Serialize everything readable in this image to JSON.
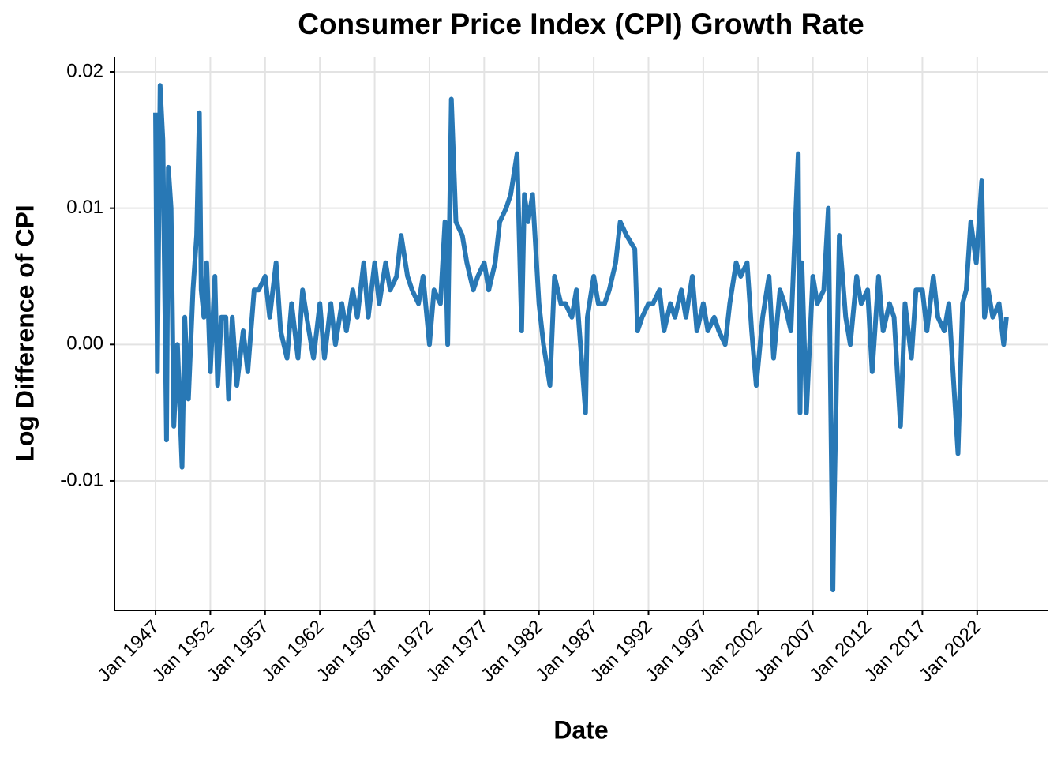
{
  "chart_data": {
    "type": "line",
    "title": "Consumer Price Index (CPI) Growth Rate",
    "x_label": "Date",
    "y_label": "Log Difference of CPI",
    "x": [
      "1947-01",
      "1947-03",
      "1947-06",
      "1947-09",
      "1948-01",
      "1948-03",
      "1948-06",
      "1948-09",
      "1949-01",
      "1949-06",
      "1949-09",
      "1950-01",
      "1950-06",
      "1950-10",
      "1951-01",
      "1951-03",
      "1951-06",
      "1951-09",
      "1952-01",
      "1952-06",
      "1952-09",
      "1953-01",
      "1953-06",
      "1953-09",
      "1954-01",
      "1954-06",
      "1955-01",
      "1955-06",
      "1956-01",
      "1956-06",
      "1957-01",
      "1957-06",
      "1958-01",
      "1958-06",
      "1959-01",
      "1959-06",
      "1960-01",
      "1960-06",
      "1961-01",
      "1961-06",
      "1962-01",
      "1962-06",
      "1963-01",
      "1963-06",
      "1964-01",
      "1964-06",
      "1965-01",
      "1965-06",
      "1966-01",
      "1966-06",
      "1967-01",
      "1967-06",
      "1968-01",
      "1968-06",
      "1969-01",
      "1969-06",
      "1970-01",
      "1970-06",
      "1971-01",
      "1971-06",
      "1972-01",
      "1972-06",
      "1973-01",
      "1973-06",
      "1973-09",
      "1974-01",
      "1974-06",
      "1975-01",
      "1975-06",
      "1976-01",
      "1976-06",
      "1977-01",
      "1977-06",
      "1978-01",
      "1978-06",
      "1979-01",
      "1979-06",
      "1980-01",
      "1980-06",
      "1980-09",
      "1981-01",
      "1981-06",
      "1982-01",
      "1982-06",
      "1983-01",
      "1983-06",
      "1984-01",
      "1984-06",
      "1985-01",
      "1985-06",
      "1986-04",
      "1986-06",
      "1987-01",
      "1987-06",
      "1988-01",
      "1988-06",
      "1989-01",
      "1989-06",
      "1990-01",
      "1990-10",
      "1991-01",
      "1991-06",
      "1992-01",
      "1992-06",
      "1993-01",
      "1993-06",
      "1994-01",
      "1994-06",
      "1995-01",
      "1995-06",
      "1996-01",
      "1996-06",
      "1997-01",
      "1997-06",
      "1998-01",
      "1998-06",
      "1999-01",
      "1999-06",
      "2000-01",
      "2000-06",
      "2001-01",
      "2001-06",
      "2001-11",
      "2002-06",
      "2003-01",
      "2003-06",
      "2004-01",
      "2004-06",
      "2005-01",
      "2005-09",
      "2005-11",
      "2006-01",
      "2006-06",
      "2007-01",
      "2007-06",
      "2008-01",
      "2008-06",
      "2008-11",
      "2008-12",
      "2009-06",
      "2010-01",
      "2010-06",
      "2011-01",
      "2011-06",
      "2012-01",
      "2012-06",
      "2013-01",
      "2013-06",
      "2014-01",
      "2014-06",
      "2015-01",
      "2015-06",
      "2016-01",
      "2016-06",
      "2017-01",
      "2017-06",
      "2018-01",
      "2018-06",
      "2019-01",
      "2019-06",
      "2020-04",
      "2020-09",
      "2021-01",
      "2021-06",
      "2021-12",
      "2022-06",
      "2022-09",
      "2023-01",
      "2023-06",
      "2024-01",
      "2024-06",
      "2024-09"
    ],
    "series": [
      {
        "color": "#2878b5",
        "values": [
          0.017,
          -0.002,
          0.019,
          0.015,
          -0.007,
          0.013,
          0.01,
          -0.006,
          0.0,
          -0.009,
          0.002,
          -0.004,
          0.004,
          0.008,
          0.017,
          0.004,
          0.002,
          0.006,
          -0.002,
          0.005,
          -0.003,
          0.002,
          0.002,
          -0.004,
          0.002,
          -0.003,
          0.001,
          -0.002,
          0.004,
          0.004,
          0.005,
          0.002,
          0.006,
          0.001,
          -0.001,
          0.003,
          -0.001,
          0.004,
          0.001,
          -0.001,
          0.003,
          -0.001,
          0.003,
          0.0,
          0.003,
          0.001,
          0.004,
          0.002,
          0.006,
          0.002,
          0.006,
          0.003,
          0.006,
          0.004,
          0.005,
          0.008,
          0.005,
          0.004,
          0.003,
          0.005,
          0.0,
          0.004,
          0.003,
          0.009,
          0.0,
          0.018,
          0.009,
          0.008,
          0.006,
          0.004,
          0.005,
          0.006,
          0.004,
          0.006,
          0.009,
          0.01,
          0.011,
          0.014,
          0.001,
          0.011,
          0.009,
          0.011,
          0.003,
          0.0,
          -0.003,
          0.005,
          0.003,
          0.003,
          0.002,
          0.004,
          -0.005,
          0.002,
          0.005,
          0.003,
          0.003,
          0.004,
          0.006,
          0.009,
          0.008,
          0.007,
          0.001,
          0.002,
          0.003,
          0.003,
          0.004,
          0.001,
          0.003,
          0.002,
          0.004,
          0.002,
          0.005,
          0.001,
          0.003,
          0.001,
          0.002,
          0.001,
          0.0,
          0.003,
          0.006,
          0.005,
          0.006,
          0.001,
          -0.003,
          0.002,
          0.005,
          -0.001,
          0.004,
          0.003,
          0.001,
          0.014,
          -0.005,
          0.006,
          -0.005,
          0.005,
          0.003,
          0.004,
          0.01,
          -0.018,
          -0.013,
          0.008,
          0.002,
          0.0,
          0.005,
          0.003,
          0.004,
          -0.002,
          0.005,
          0.001,
          0.003,
          0.002,
          -0.006,
          0.003,
          -0.001,
          0.004,
          0.004,
          0.001,
          0.005,
          0.002,
          0.001,
          0.003,
          -0.008,
          0.003,
          0.004,
          0.009,
          0.006,
          0.012,
          0.002,
          0.004,
          0.002,
          0.003,
          0.0,
          0.002
        ]
      }
    ],
    "xlim": [
      "1943-04",
      "2028-07"
    ],
    "xticks": [
      {
        "value": "1947-01",
        "label": "Jan 1947"
      },
      {
        "value": "1952-01",
        "label": "Jan 1952"
      },
      {
        "value": "1957-01",
        "label": "Jan 1957"
      },
      {
        "value": "1962-01",
        "label": "Jan 1962"
      },
      {
        "value": "1967-01",
        "label": "Jan 1967"
      },
      {
        "value": "1972-01",
        "label": "Jan 1972"
      },
      {
        "value": "1977-01",
        "label": "Jan 1977"
      },
      {
        "value": "1982-01",
        "label": "Jan 1982"
      },
      {
        "value": "1987-01",
        "label": "Jan 1987"
      },
      {
        "value": "1992-01",
        "label": "Jan 1992"
      },
      {
        "value": "1997-01",
        "label": "Jan 1997"
      },
      {
        "value": "2002-01",
        "label": "Jan 2002"
      },
      {
        "value": "2007-01",
        "label": "Jan 2007"
      },
      {
        "value": "2012-01",
        "label": "Jan 2012"
      },
      {
        "value": "2017-01",
        "label": "Jan 2017"
      },
      {
        "value": "2022-01",
        "label": "Jan 2022"
      }
    ],
    "ylim": [
      -0.0195,
      0.0211
    ],
    "yticks": [
      0.02,
      0.01,
      {
        "value": 0,
        "label": "0.00"
      },
      -0.01
    ],
    "grid": true
  }
}
